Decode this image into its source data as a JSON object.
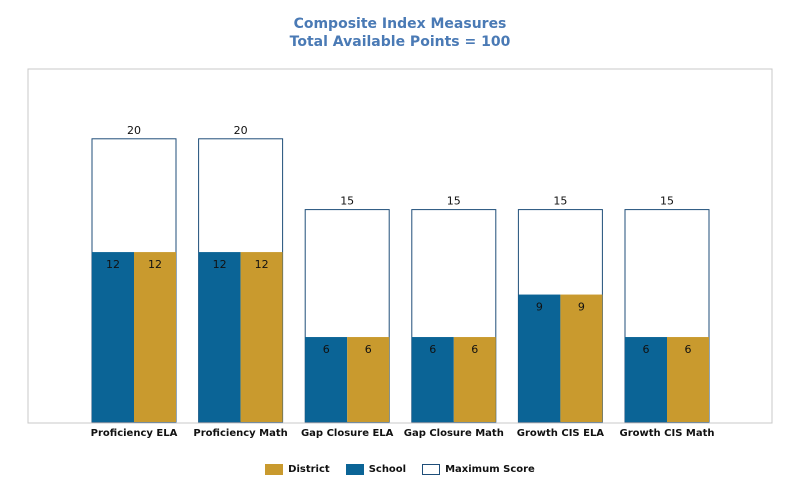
{
  "chart_data": {
    "type": "bar",
    "title": "Composite Index Measures",
    "subtitle": "Total Available Points = 100",
    "categories": [
      "Proficiency ELA",
      "Proficiency Math",
      "Gap Closure ELA",
      "Gap Closure Math",
      "Growth CIS ELA",
      "Growth CIS Math"
    ],
    "series": [
      {
        "name": "Maximum Score",
        "values": [
          20,
          20,
          15,
          15,
          15,
          15
        ]
      },
      {
        "name": "School",
        "values": [
          12,
          12,
          6,
          6,
          9,
          6
        ]
      },
      {
        "name": "District",
        "values": [
          12,
          12,
          6,
          6,
          9,
          6
        ]
      }
    ],
    "ylim": [
      0,
      25
    ],
    "legend": [
      {
        "name": "District",
        "color": "#c99a2e"
      },
      {
        "name": "School",
        "color": "#0b6496"
      },
      {
        "name": "Maximum Score",
        "color": "#ffffff"
      }
    ],
    "grid": false,
    "legend_position": "bottom-center"
  }
}
